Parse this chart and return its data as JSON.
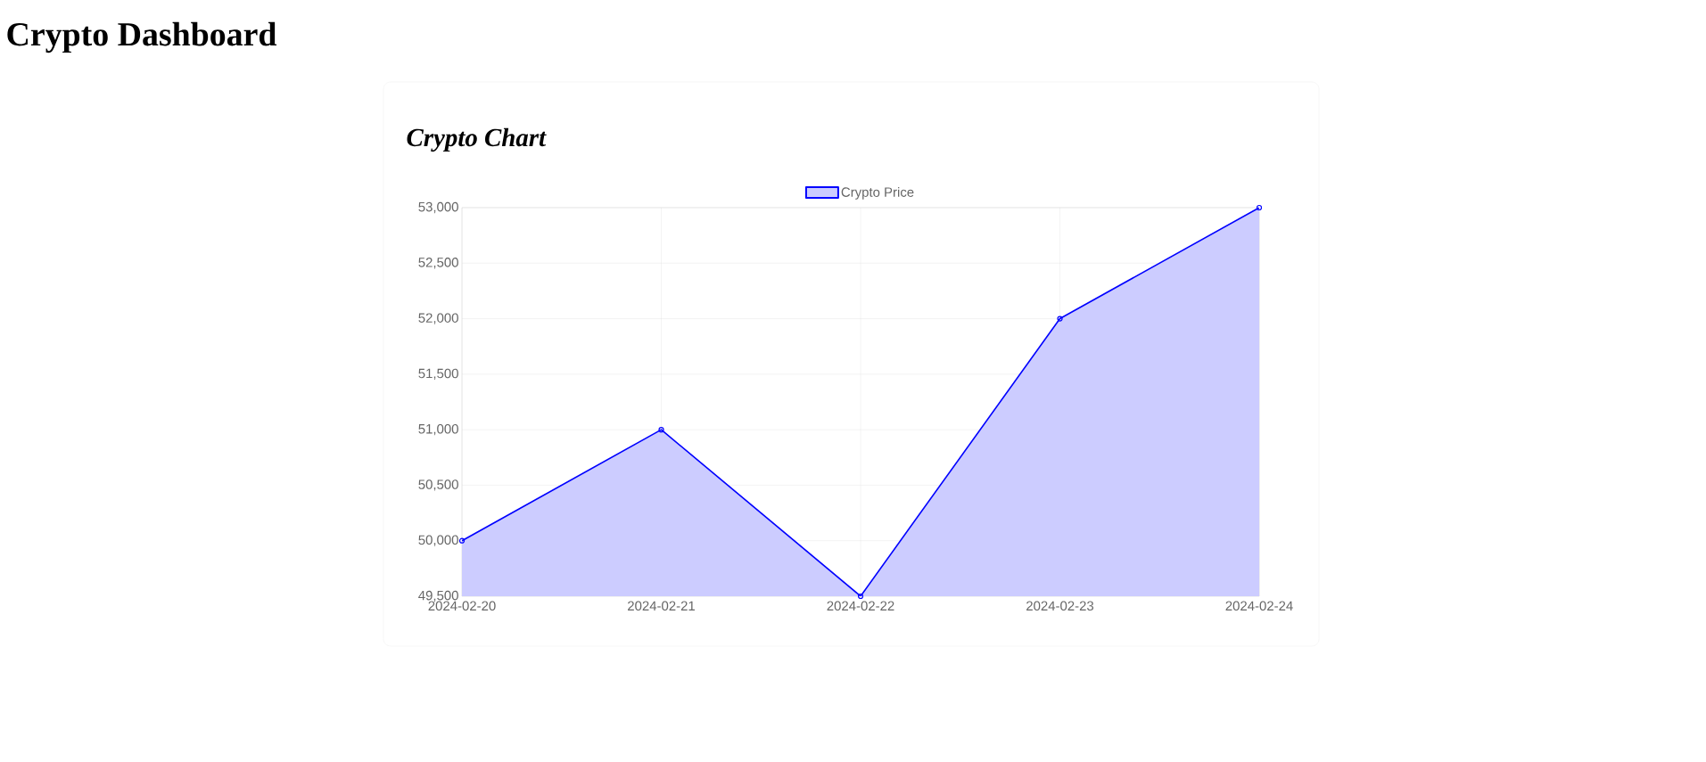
{
  "chart_data": {
    "type": "area",
    "title": "Crypto Dashboard",
    "subtitle": "Crypto Chart",
    "categories": [
      "2024-02-20",
      "2024-02-21",
      "2024-02-22",
      "2024-02-23",
      "2024-02-24"
    ],
    "series": [
      {
        "name": "Crypto Price",
        "color": "#0000ff",
        "values": [
          50000,
          51000,
          49500,
          52000,
          53000
        ]
      }
    ],
    "ylim": [
      49500,
      53000
    ],
    "yticks": [
      {
        "value": 49500,
        "label": "49,500"
      },
      {
        "value": 50000,
        "label": "50,000"
      },
      {
        "value": 50500,
        "label": "50,500"
      },
      {
        "value": 51000,
        "label": "51,000"
      },
      {
        "value": 51500,
        "label": "51,500"
      },
      {
        "value": 52000,
        "label": "52,000"
      },
      {
        "value": 52500,
        "label": "52,500"
      },
      {
        "value": 53000,
        "label": "53,000"
      }
    ],
    "grid": true,
    "legend": "top",
    "marker": "circle"
  }
}
